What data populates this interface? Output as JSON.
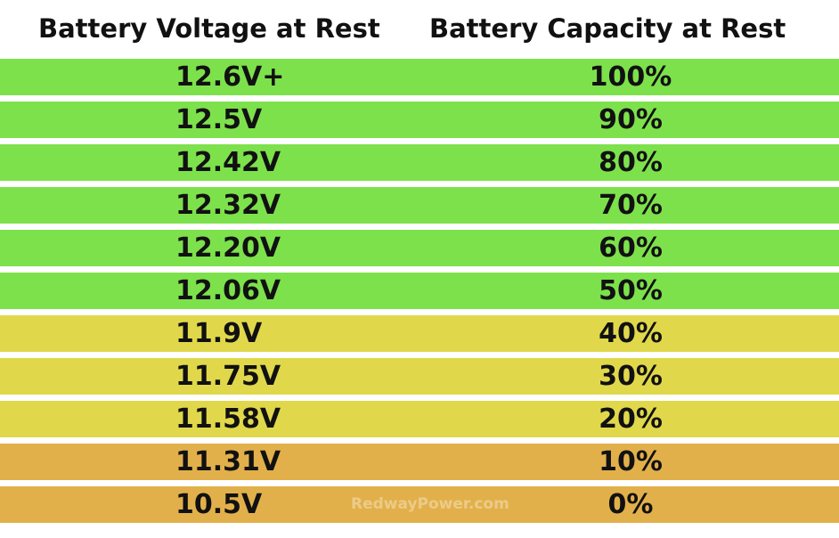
{
  "header": {
    "voltage_label": "Battery Voltage at Rest",
    "capacity_label": "Battery Capacity at Rest"
  },
  "colors": {
    "green": "#7de14c",
    "yellow": "#e0d84a",
    "orange": "#e2b04a",
    "separator": "#ffffff"
  },
  "rows": [
    {
      "voltage": "12.6V+",
      "capacity": "100%",
      "color": "#7de14c"
    },
    {
      "voltage": "12.5V",
      "capacity": "90%",
      "color": "#7de14c"
    },
    {
      "voltage": "12.42V",
      "capacity": "80%",
      "color": "#7de14c"
    },
    {
      "voltage": "12.32V",
      "capacity": "70%",
      "color": "#7de14c"
    },
    {
      "voltage": "12.20V",
      "capacity": "60%",
      "color": "#7de14c"
    },
    {
      "voltage": "12.06V",
      "capacity": "50%",
      "color": "#7de14c"
    },
    {
      "voltage": "11.9V",
      "capacity": "40%",
      "color": "#e0d84a"
    },
    {
      "voltage": "11.75V",
      "capacity": "30%",
      "color": "#e0d84a"
    },
    {
      "voltage": "11.58V",
      "capacity": "20%",
      "color": "#e0d84a"
    },
    {
      "voltage": "11.31V",
      "capacity": "10%",
      "color": "#e2b04a"
    },
    {
      "voltage": "10.5V",
      "capacity": "0%",
      "color": "#e2b04a"
    }
  ],
  "watermark": "RedwayPower.com"
}
